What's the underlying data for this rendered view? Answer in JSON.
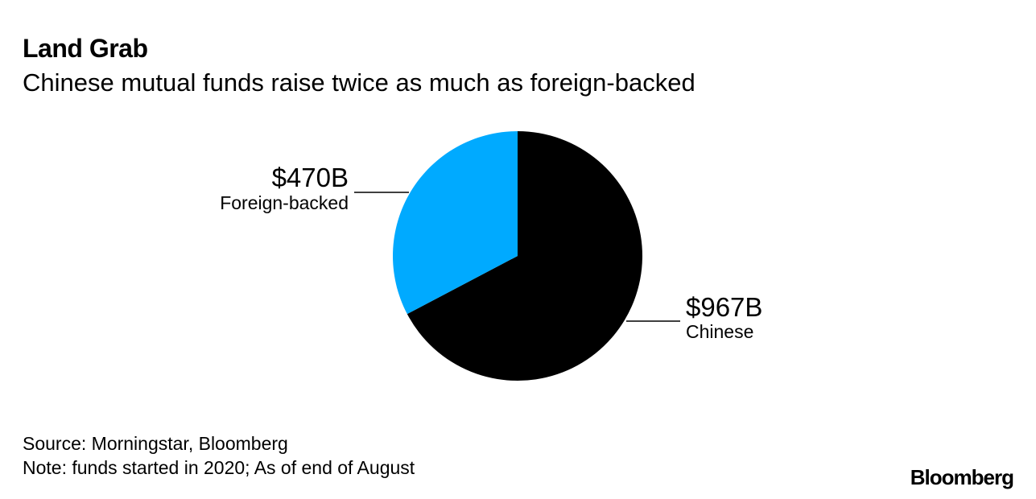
{
  "header": {
    "title": "Land Grab",
    "subtitle": "Chinese mutual funds raise twice as much as foreign-backed"
  },
  "chart_data": {
    "type": "pie",
    "unit": "$B",
    "slices": [
      {
        "name": "Chinese",
        "value": 967,
        "label": "$967B",
        "color": "#000000"
      },
      {
        "name": "Foreign-backed",
        "value": 470,
        "label": "$470B",
        "color": "#00aaff"
      }
    ],
    "start_angle": "top, clockwise",
    "legend": "none (direct labels)"
  },
  "footer": {
    "source": "Source: Morningstar, Bloomberg",
    "note": "Note: funds started in 2020; As of end of August",
    "logo": "Bloomberg"
  }
}
